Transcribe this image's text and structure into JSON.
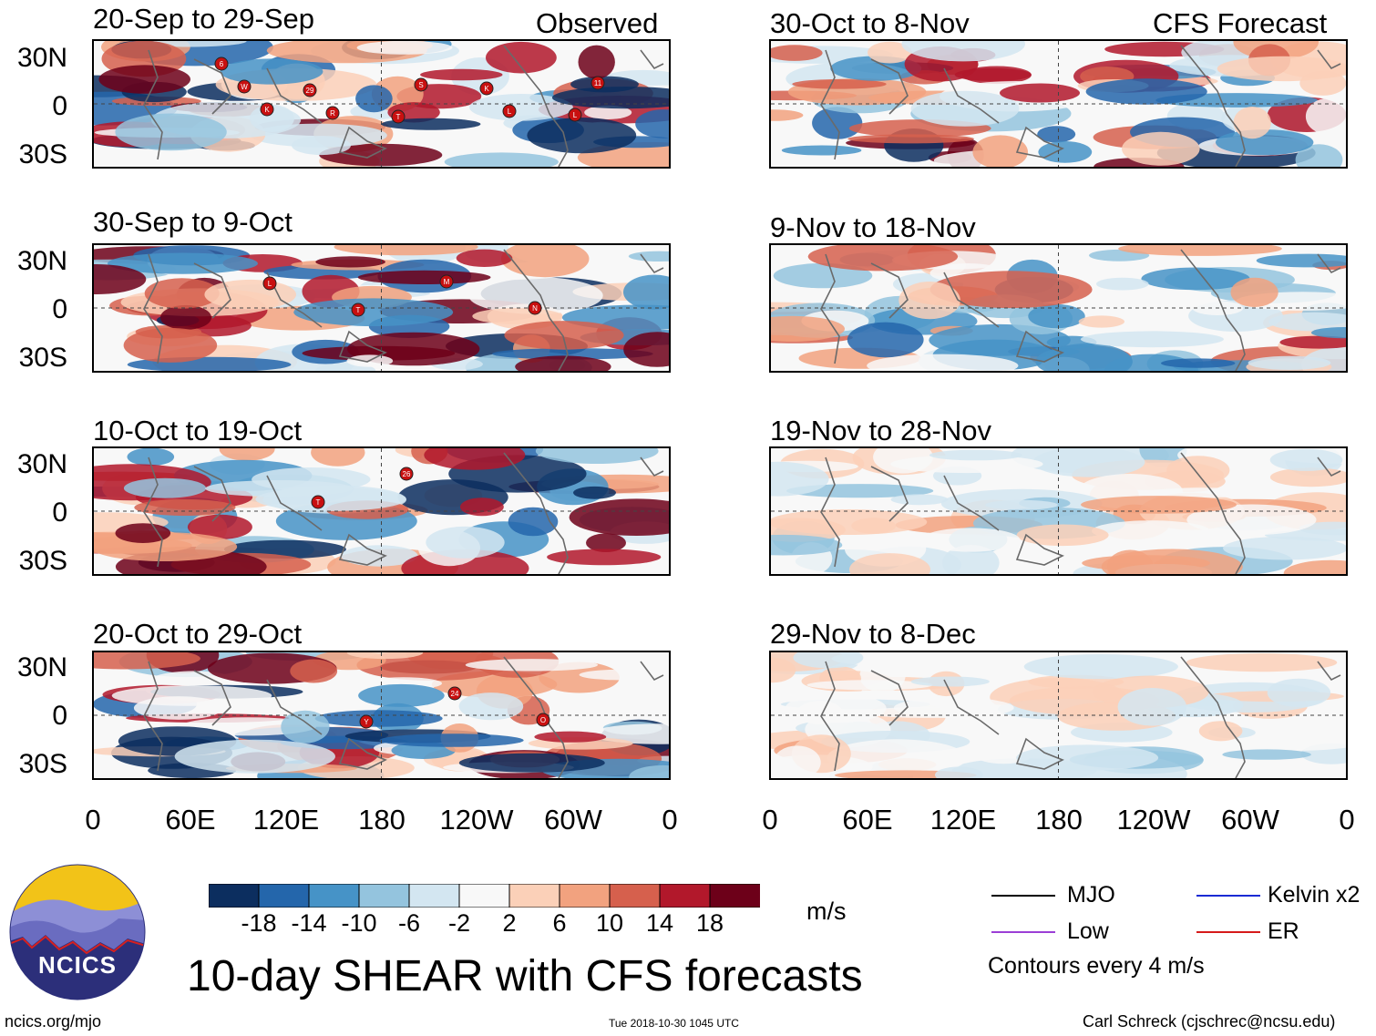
{
  "chart_data": {
    "type": "heatmap",
    "title": "10-day SHEAR with CFS forecasts",
    "units": "m/s",
    "colorbar": {
      "ticks": [
        "-18",
        "-14",
        "-10",
        "-6",
        "-2",
        "2",
        "6",
        "10",
        "14",
        "18"
      ],
      "colors": [
        "#0c2e5f",
        "#2466ab",
        "#4693c7",
        "#94c4de",
        "#d3e6f1",
        "#f8f8f8",
        "#fbd0b8",
        "#f2a27f",
        "#d6604d",
        "#b2182b",
        "#6d0019"
      ]
    },
    "x_ticks": [
      "0",
      "60E",
      "120E",
      "180",
      "120W",
      "60W",
      "0"
    ],
    "y_ticks": [
      "30N",
      "0",
      "30S"
    ],
    "column_headers": {
      "observed": "Observed",
      "forecast": "CFS Forecast"
    },
    "panels": [
      {
        "title": "20-Sep to 29-Sep",
        "kind": "observed",
        "labels": [
          "6",
          "29",
          "T",
          "K",
          "L",
          "W",
          "R",
          "S",
          "L",
          "11",
          "K"
        ]
      },
      {
        "title": "30-Sep to 9-Oct",
        "kind": "observed",
        "labels": [
          "L",
          "T",
          "M",
          "N"
        ]
      },
      {
        "title": "10-Oct to 19-Oct",
        "kind": "observed",
        "labels": [
          "T",
          "26"
        ]
      },
      {
        "title": "20-Oct to 29-Oct",
        "kind": "observed",
        "labels": [
          "Y",
          "24",
          "O"
        ]
      },
      {
        "title": "30-Oct to 8-Nov",
        "kind": "forecast",
        "labels": []
      },
      {
        "title": "9-Nov to 18-Nov",
        "kind": "forecast",
        "labels": []
      },
      {
        "title": "19-Nov to 28-Nov",
        "kind": "forecast",
        "labels": []
      },
      {
        "title": "29-Nov to 8-Dec",
        "kind": "forecast",
        "labels": []
      }
    ],
    "contour_interval": "Contours every 4 m/s"
  },
  "legend": {
    "items": [
      {
        "label": "MJO",
        "color": "#000000"
      },
      {
        "label": "Kelvin x2",
        "color": "#1a2bd4"
      },
      {
        "label": "Low",
        "color": "#9b3fd6"
      },
      {
        "label": "ER",
        "color": "#d61a1a"
      }
    ],
    "note": "Contours every 4 m/s"
  },
  "logo": {
    "text": "NCICS"
  },
  "footer": {
    "site": "ncics.org/mjo",
    "timestamp": "Tue 2018-10-30 1045 UTC",
    "author": "Carl Schreck (cjschrec@ncsu.edu)"
  }
}
